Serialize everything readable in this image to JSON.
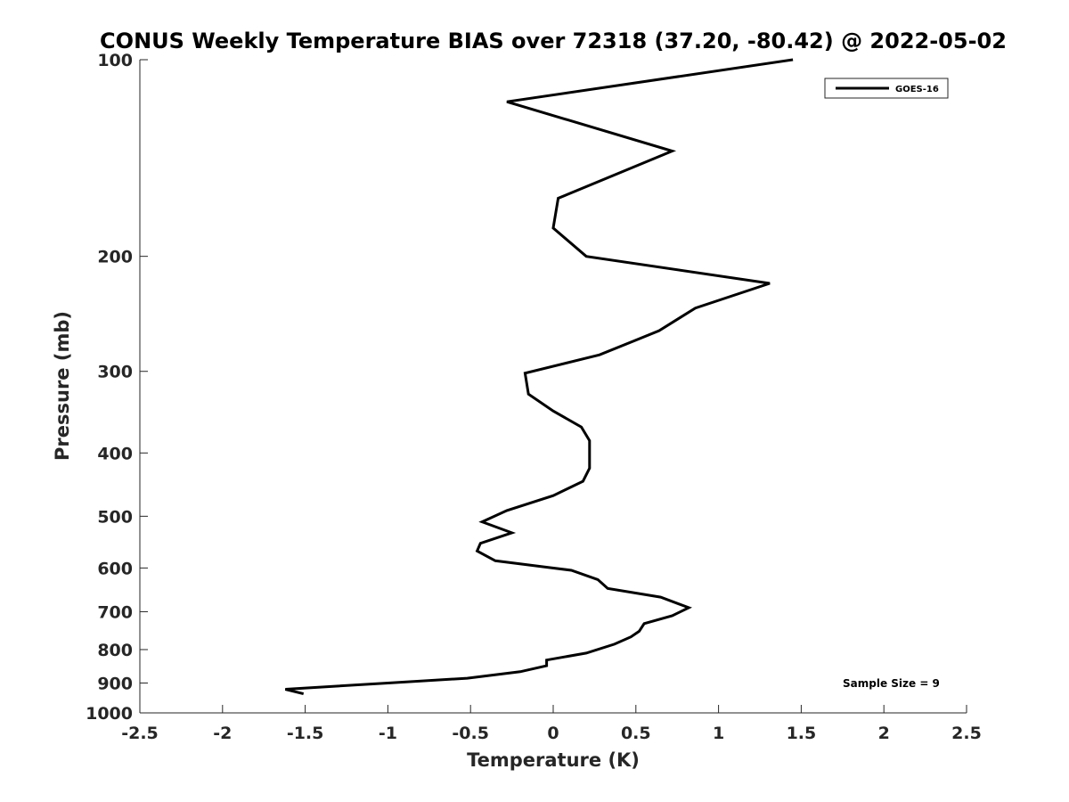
{
  "chart_data": {
    "type": "line",
    "title": "CONUS Weekly Temperature BIAS over 72318 (37.20, -80.42) @ 2022-05-02",
    "xlabel": "Temperature (K)",
    "ylabel": "Pressure (mb)",
    "xlim": [
      -2.5,
      2.5
    ],
    "ylim": [
      100,
      1000
    ],
    "y_scale": "log",
    "y_reversed": true,
    "grid": false,
    "legend_position": "top-right",
    "x_ticks": [
      "-2.5",
      "-2",
      "-1.5",
      "-1",
      "-0.5",
      "0",
      "0.5",
      "1",
      "1.5",
      "2",
      "2.5"
    ],
    "y_ticks": [
      "100",
      "200",
      "300",
      "400",
      "500",
      "600",
      "700",
      "800",
      "900",
      "1000"
    ],
    "annotation": "Sample Size = 9",
    "series": [
      {
        "name": "GOES-16",
        "color": "#000000",
        "points": [
          [
            1.45,
            100
          ],
          [
            -0.28,
            116
          ],
          [
            0.72,
            138
          ],
          [
            0.03,
            163
          ],
          [
            0.0,
            181
          ],
          [
            0.2,
            200
          ],
          [
            1.31,
            220
          ],
          [
            0.86,
            240
          ],
          [
            0.64,
            260
          ],
          [
            0.28,
            283
          ],
          [
            -0.17,
            302
          ],
          [
            -0.15,
            325
          ],
          [
            0.0,
            345
          ],
          [
            0.17,
            365
          ],
          [
            0.22,
            383
          ],
          [
            0.22,
            405
          ],
          [
            0.22,
            422
          ],
          [
            0.18,
            442
          ],
          [
            0.0,
            465
          ],
          [
            -0.28,
            490
          ],
          [
            -0.43,
            510
          ],
          [
            -0.25,
            530
          ],
          [
            -0.44,
            550
          ],
          [
            -0.46,
            565
          ],
          [
            -0.35,
            585
          ],
          [
            0.11,
            605
          ],
          [
            0.27,
            625
          ],
          [
            0.33,
            645
          ],
          [
            0.65,
            665
          ],
          [
            0.82,
            690
          ],
          [
            0.72,
            710
          ],
          [
            0.55,
            730
          ],
          [
            0.52,
            750
          ],
          [
            0.47,
            765
          ],
          [
            0.37,
            785
          ],
          [
            0.2,
            810
          ],
          [
            -0.04,
            830
          ],
          [
            -0.04,
            847
          ],
          [
            -0.2,
            865
          ],
          [
            -0.52,
            885
          ],
          [
            -1.0,
            900
          ],
          [
            -1.62,
            920
          ],
          [
            -1.51,
            935
          ]
        ]
      }
    ]
  }
}
